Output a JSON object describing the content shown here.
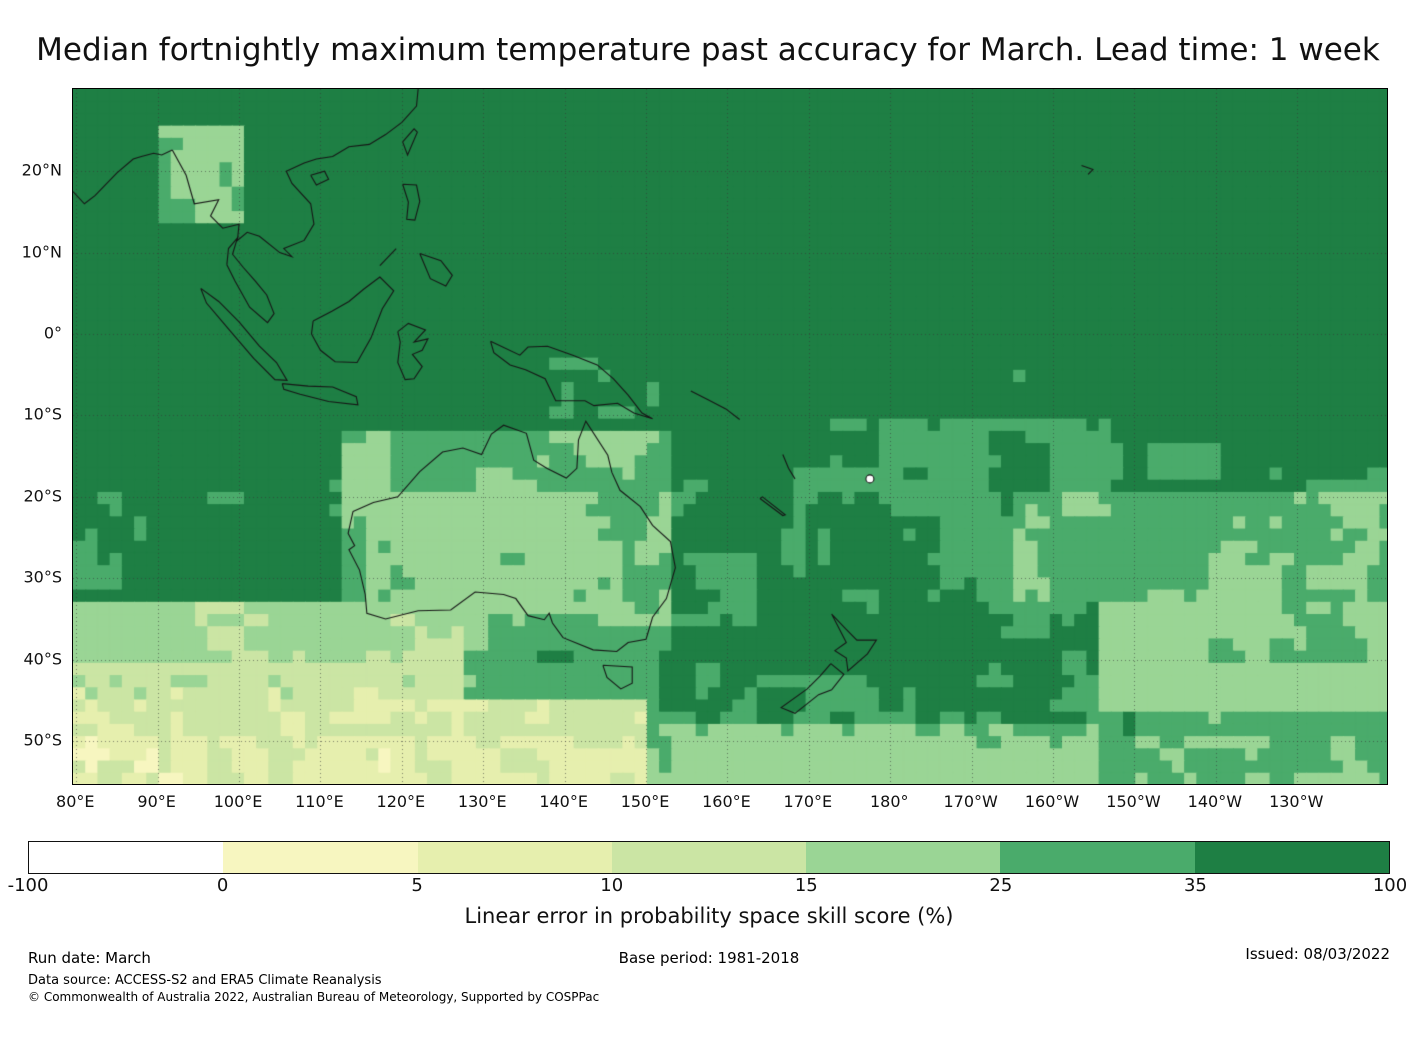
{
  "title": "Median fortnightly maximum temperature past accuracy for March. Lead time: 1 week",
  "map": {
    "lat_ticks": [
      "20°N",
      "10°N",
      "0°",
      "10°S",
      "20°S",
      "30°S",
      "40°S",
      "50°S"
    ],
    "lon_ticks": [
      "80°E",
      "90°E",
      "100°E",
      "110°E",
      "120°E",
      "130°E",
      "140°E",
      "150°E",
      "160°E",
      "170°E",
      "180°",
      "170°W",
      "160°W",
      "150°W",
      "140°W",
      "130°W"
    ]
  },
  "colorbar": {
    "ticks": [
      "-100",
      "0",
      "5",
      "10",
      "15",
      "25",
      "35",
      "100"
    ],
    "colors": [
      "#ffffff",
      "#f7f6c0",
      "#e6efae",
      "#cbe5a4",
      "#9ad595",
      "#4aab6b",
      "#1e7f44"
    ],
    "label": "Linear error in probability space skill score (%)"
  },
  "footer": {
    "run_date": "Run date: March",
    "base_period": "Base period: 1981-2018",
    "issued": "Issued: 08/03/2022",
    "data_source": "Data source: ACCESS-S2 and ERA5 Climate Reanalysis",
    "copyright": "© Commonwealth of Australia 2022, Australian Bureau of Meteorology, Supported by COSPPac"
  },
  "chart_data": {
    "type": "heatmap",
    "title": "Median fortnightly maximum temperature past accuracy for March. Lead time: 1 week",
    "value_label": "Linear error in probability space skill score (%)",
    "x_tick_labels": [
      "80°E",
      "90°E",
      "100°E",
      "110°E",
      "120°E",
      "130°E",
      "140°E",
      "150°E",
      "160°E",
      "170°E",
      "180°",
      "170°W",
      "160°W",
      "150°W",
      "140°W",
      "130°W"
    ],
    "y_tick_labels": [
      "20°N",
      "10°N",
      "0°",
      "10°S",
      "20°S",
      "30°S",
      "40°S",
      "50°S"
    ],
    "x_range_deg_east": [
      79.6,
      241.4
    ],
    "y_range_deg_north": [
      -55.5,
      30.1
    ],
    "scale_bin_edges": [
      -100,
      0,
      5,
      10,
      15,
      25,
      35,
      100
    ],
    "scale_colors": [
      "#ffffff",
      "#f7f6c0",
      "#e6efae",
      "#cbe5a4",
      "#9ad595",
      "#4aab6b",
      "#1e7f44"
    ],
    "grid": true,
    "legend_position": "bottom horizontal colorbar",
    "run_date": "March",
    "base_period": "1981-2018",
    "issued": "08/03/2022",
    "data_source": "ACCESS-S2 and ERA5 Climate Reanalysis"
  }
}
